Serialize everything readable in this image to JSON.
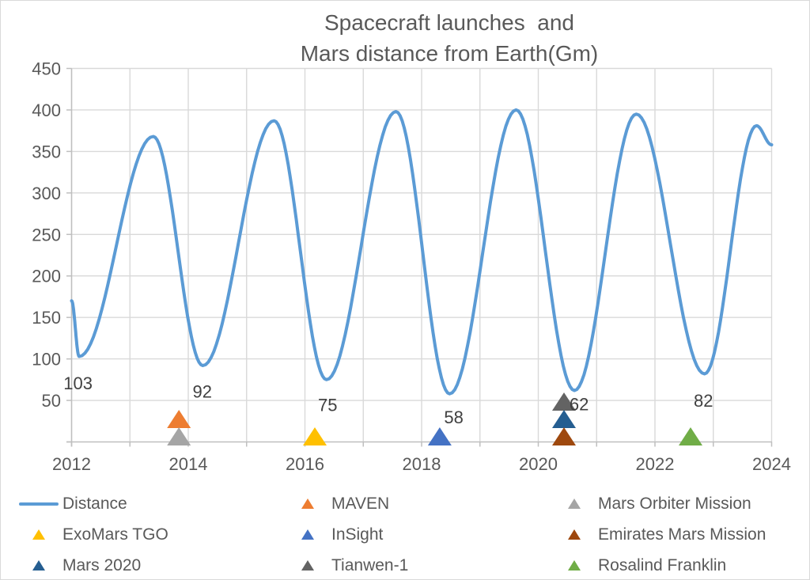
{
  "title": {
    "line1": "Spacecraft launches  and",
    "line2": "Mars distance from Earth(Gm)",
    "full": "Spacecraft launches and Mars distance from Earth(Gm)"
  },
  "colors": {
    "distance_line": "#5B9BD5",
    "maven": "#ED7D31",
    "mars_orbiter_mission": "#A5A5A5",
    "exomars_tgo": "#FFC000",
    "insight": "#4472C4",
    "emirates_mars_mission": "#9E480E",
    "mars_2020": "#255E91",
    "tianwen_1": "#636363",
    "rosalind_franklin": "#70AD47",
    "gridline": "#D9D9D9",
    "axis_line": "#BFBFBF",
    "axis_text": "#595959",
    "data_label_text": "#404040",
    "chart_border": "#D9D9D9"
  },
  "chart_data": {
    "type": "line",
    "title": "Spacecraft launches and Mars distance from Earth(Gm)",
    "xlabel": "",
    "ylabel": "",
    "x_range": [
      2012,
      2024
    ],
    "y_range": [
      0,
      450
    ],
    "x_tick_labels": [
      "2012",
      "2014",
      "2016",
      "2018",
      "2020",
      "2022",
      "2024"
    ],
    "x_tick_values": [
      2012,
      2014,
      2016,
      2018,
      2020,
      2022,
      2024
    ],
    "x_gridline_interval_years": 1,
    "y_tick_values": [
      50,
      100,
      150,
      200,
      250,
      300,
      350,
      400,
      450
    ],
    "grid": "on",
    "legend_position": "bottom",
    "series": [
      {
        "name": "Distance",
        "color": "#5B9BD5",
        "style": "smooth-line",
        "keypoints_year_value": [
          [
            2012.0,
            170
          ],
          [
            2012.13,
            103
          ],
          [
            2013.4,
            368
          ],
          [
            2014.25,
            92
          ],
          [
            2015.47,
            387
          ],
          [
            2016.37,
            75
          ],
          [
            2017.56,
            398
          ],
          [
            2018.48,
            58
          ],
          [
            2019.62,
            400
          ],
          [
            2020.62,
            62
          ],
          [
            2021.68,
            395
          ],
          [
            2022.85,
            82
          ],
          [
            2023.74,
            381
          ],
          [
            2024.0,
            358
          ]
        ]
      }
    ],
    "launch_markers": [
      {
        "name": "Mars Orbiter Mission",
        "year": 2013.84,
        "stack": 0,
        "color": "#A5A5A5"
      },
      {
        "name": "MAVEN",
        "year": 2013.84,
        "stack": 1,
        "color": "#ED7D31"
      },
      {
        "name": "ExoMars TGO",
        "year": 2016.17,
        "stack": 0,
        "color": "#FFC000"
      },
      {
        "name": "InSight",
        "year": 2018.31,
        "stack": 0,
        "color": "#4472C4"
      },
      {
        "name": "Emirates Mars Mission",
        "year": 2020.44,
        "stack": 0,
        "color": "#9E480E"
      },
      {
        "name": "Mars 2020",
        "year": 2020.44,
        "stack": 1,
        "color": "#255E91"
      },
      {
        "name": "Tianwen-1",
        "year": 2020.44,
        "stack": 2,
        "color": "#636363"
      },
      {
        "name": "Rosalind Franklin",
        "year": 2022.61,
        "stack": 0,
        "color": "#70AD47"
      }
    ],
    "min_distance_labels": [
      {
        "text": "103",
        "year": 2012.11,
        "value": 71
      },
      {
        "text": "92",
        "year": 2014.24,
        "value": 61
      },
      {
        "text": "75",
        "year": 2016.39,
        "value": 45
      },
      {
        "text": "58",
        "year": 2018.55,
        "value": 30
      },
      {
        "text": "62",
        "year": 2020.7,
        "value": 46
      },
      {
        "text": "82",
        "year": 2022.83,
        "value": 50
      }
    ]
  },
  "legend": {
    "items": [
      {
        "label": "Distance",
        "slug": "distance",
        "marker": "line",
        "color": "#5B9BD5"
      },
      {
        "label": "MAVEN",
        "slug": "maven",
        "marker": "triangle",
        "color": "#ED7D31"
      },
      {
        "label": "Mars Orbiter Mission",
        "slug": "mars-orbiter-mission",
        "marker": "triangle",
        "color": "#A5A5A5"
      },
      {
        "label": "ExoMars TGO",
        "slug": "exomars-tgo",
        "marker": "triangle",
        "color": "#FFC000"
      },
      {
        "label": "InSight",
        "slug": "insight",
        "marker": "triangle",
        "color": "#4472C4"
      },
      {
        "label": "Emirates Mars Mission",
        "slug": "emirates-mars-mission",
        "marker": "triangle",
        "color": "#9E480E"
      },
      {
        "label": "Mars 2020",
        "slug": "mars-2020",
        "marker": "triangle",
        "color": "#255E91"
      },
      {
        "label": "Tianwen-1",
        "slug": "tianwen-1",
        "marker": "triangle",
        "color": "#636363"
      },
      {
        "label": "Rosalind Franklin",
        "slug": "rosalind-franklin",
        "marker": "triangle",
        "color": "#70AD47"
      }
    ]
  }
}
